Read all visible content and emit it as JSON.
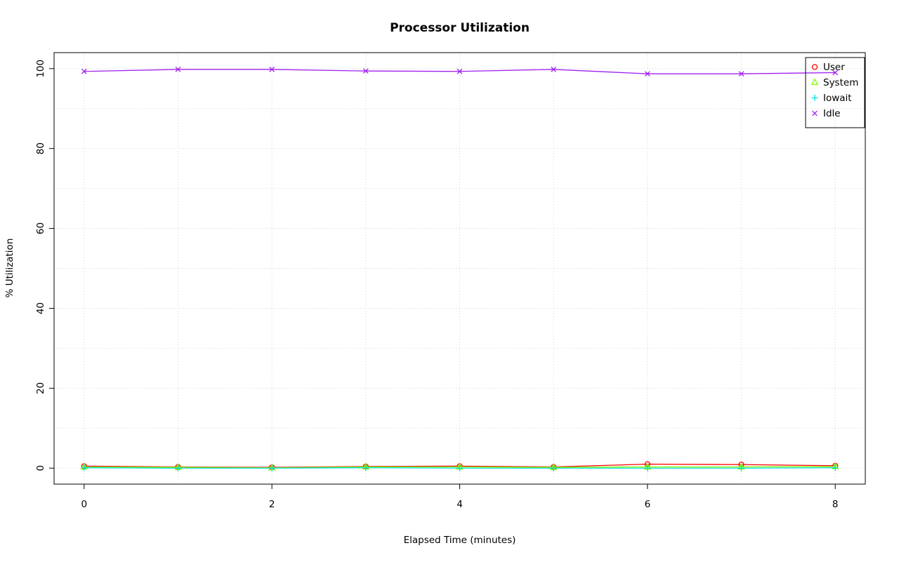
{
  "chart_data": {
    "type": "line",
    "title": "Processor Utilization",
    "xlabel": "Elapsed Time (minutes)",
    "ylabel": "% Utilization",
    "x": [
      0,
      1,
      2,
      3,
      4,
      5,
      6,
      7,
      8
    ],
    "xlim": [
      0,
      8
    ],
    "ylim": [
      0,
      100
    ],
    "x_ticks": [
      0,
      2,
      4,
      6,
      8
    ],
    "y_ticks": [
      0,
      20,
      40,
      60,
      80,
      100
    ],
    "grid": {
      "x_every": 1,
      "y_every": 10,
      "color": "#d3d3d3",
      "style": "dotted"
    },
    "legend": {
      "position": "top-right",
      "border": true
    },
    "series": [
      {
        "name": "User",
        "color": "#ff0000",
        "symbol": "circle",
        "values": [
          0.5,
          0.3,
          0.2,
          0.4,
          0.5,
          0.3,
          1.0,
          0.9,
          0.6
        ]
      },
      {
        "name": "System",
        "color": "#7cfc00",
        "symbol": "triangle",
        "values": [
          0.3,
          0.2,
          0.1,
          0.3,
          0.3,
          0.2,
          0.3,
          0.3,
          0.4
        ]
      },
      {
        "name": "Iowait",
        "color": "#00e0e0",
        "symbol": "plus",
        "values": [
          0.1,
          0.0,
          0.0,
          0.1,
          0.0,
          0.0,
          0.0,
          0.0,
          0.1
        ]
      },
      {
        "name": "Idle",
        "color": "#a020f0",
        "symbol": "x",
        "values": [
          99.3,
          99.8,
          99.8,
          99.4,
          99.3,
          99.8,
          98.7,
          98.7,
          99.0
        ]
      }
    ]
  }
}
